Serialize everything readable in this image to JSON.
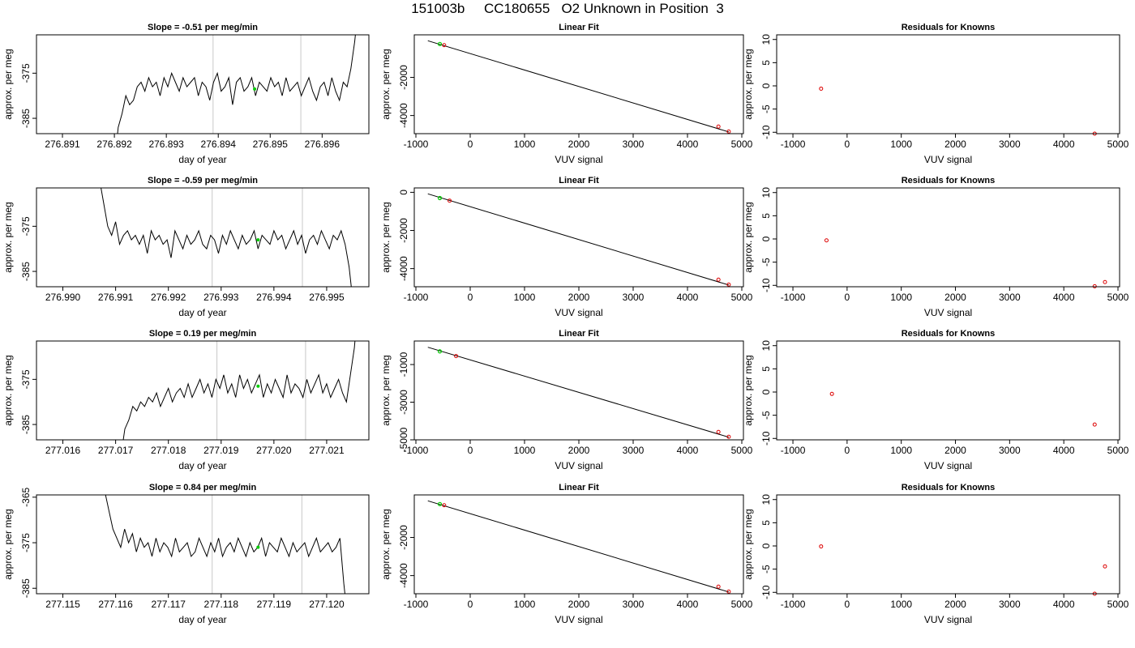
{
  "main_title": "151003b     CC180655   O2 Unknown in Position  3",
  "chart_data": [
    {
      "row": 1,
      "panel": "timeseries",
      "type": "line",
      "title": "Slope =  -0.51  per meg/min",
      "xlabel": "day of year",
      "ylabel": "approx. per meg",
      "xticks": [
        "276.891",
        "276.892",
        "276.893",
        "276.894",
        "276.895",
        "276.896"
      ],
      "yticks": [
        "-375",
        "-385"
      ],
      "xlim": [
        276.8905,
        276.8969
      ],
      "ylim": [
        -388.4,
        -366.5
      ],
      "vlines": [
        276.8939,
        276.89559
      ],
      "series": [
        {
          "values_x0": 276.892,
          "values_x1": 276.8967,
          "values": [
            -395,
            -387,
            -384,
            -380,
            -382,
            -381,
            -378,
            -377,
            -379,
            -376,
            -378,
            -377,
            -380,
            -376,
            -378,
            -375,
            -377,
            -379,
            -376,
            -378,
            -377,
            -376,
            -380,
            -377,
            -378,
            -381,
            -377,
            -375,
            -379,
            -378,
            -376,
            -382,
            -377,
            -376,
            -379,
            -378,
            -376,
            -380,
            -377,
            -378,
            -379,
            -376,
            -378,
            -377,
            -380,
            -376,
            -379,
            -378,
            -377,
            -380,
            -378,
            -376,
            -379,
            -381,
            -378,
            -377,
            -380,
            -376,
            -379,
            -381,
            -377,
            -378,
            -374,
            -368,
            -360
          ]
        }
      ],
      "green_point": [
        276.8947,
        -378.5
      ]
    },
    {
      "row": 1,
      "panel": "fit",
      "type": "scatter",
      "title": "Linear Fit",
      "xlabel": "VUV signal",
      "ylabel": "approx. per meg",
      "xticks": [
        "-1000",
        "0",
        "1000",
        "2000",
        "3000",
        "4000",
        "5000"
      ],
      "yticks": [
        "-2000",
        "-4000"
      ],
      "xlim": [
        -1030,
        5030
      ],
      "ylim": [
        -4950,
        230
      ],
      "line": [
        [
          -780,
          -80
        ],
        [
          4760,
          -4860
        ]
      ],
      "points_red": [
        [
          -480,
          -310
        ],
        [
          4570,
          -4580
        ],
        [
          4760,
          -4840
        ]
      ],
      "points_green": [
        [
          -560,
          -250
        ]
      ]
    },
    {
      "row": 1,
      "panel": "residuals",
      "type": "scatter",
      "title": "Residuals for Knowns",
      "xlabel": "VUV signal",
      "ylabel": "approx. per meg",
      "xticks": [
        "-1000",
        "0",
        "1000",
        "2000",
        "3000",
        "4000",
        "5000"
      ],
      "yticks": [
        "10",
        "5",
        "0",
        "-5",
        "-10"
      ],
      "xlim": [
        -1300,
        5030
      ],
      "ylim": [
        -10.3,
        11.0
      ],
      "points_red": [
        [
          -480,
          -0.6
        ],
        [
          4570,
          -10.3
        ]
      ]
    },
    {
      "row": 2,
      "panel": "timeseries",
      "type": "line",
      "title": "Slope =  -0.59  per meg/min",
      "xlabel": "day of year",
      "ylabel": "approx. per meg",
      "xticks": [
        "276.990",
        "276.991",
        "276.992",
        "276.993",
        "276.994",
        "276.995"
      ],
      "yticks": [
        "-375",
        "-385"
      ],
      "xlim": [
        276.9895,
        276.9958
      ],
      "ylim": [
        -388.4,
        -366.5
      ],
      "vlines": [
        276.99283,
        276.99454
      ],
      "series": [
        {
          "values_x0": 276.9907,
          "values_x1": 276.9955,
          "values": [
            -365,
            -370,
            -375,
            -377,
            -374,
            -379,
            -377,
            -376,
            -378,
            -377,
            -379,
            -377,
            -381,
            -376,
            -378,
            -377,
            -379,
            -378,
            -382,
            -376,
            -378,
            -380,
            -377,
            -379,
            -378,
            -376,
            -379,
            -380,
            -377,
            -378,
            -381,
            -377,
            -379,
            -376,
            -378,
            -380,
            -377,
            -379,
            -378,
            -376,
            -380,
            -377,
            -378,
            -379,
            -376,
            -378,
            -377,
            -380,
            -378,
            -376,
            -379,
            -377,
            -381,
            -378,
            -377,
            -379,
            -376,
            -378,
            -380,
            -377,
            -378,
            -376,
            -379,
            -384,
            -392
          ]
        }
      ],
      "green_point": [
        276.9937,
        -378.0
      ]
    },
    {
      "row": 2,
      "panel": "fit",
      "type": "scatter",
      "title": "Linear Fit",
      "xlabel": "VUV signal",
      "ylabel": "approx. per meg",
      "xticks": [
        "-1000",
        "0",
        "1000",
        "2000",
        "3000",
        "4000",
        "5000"
      ],
      "yticks": [
        "0",
        "-2000",
        "-4000"
      ],
      "xlim": [
        -1030,
        5030
      ],
      "ylim": [
        -4950,
        230
      ],
      "line": [
        [
          -780,
          -80
        ],
        [
          4760,
          -4860
        ]
      ],
      "points_red": [
        [
          -380,
          -440
        ],
        [
          4570,
          -4580
        ],
        [
          4760,
          -4840
        ]
      ],
      "points_green": [
        [
          -560,
          -300
        ]
      ]
    },
    {
      "row": 2,
      "panel": "residuals",
      "type": "scatter",
      "title": "Residuals for Knowns",
      "xlabel": "VUV signal",
      "ylabel": "approx. per meg",
      "xticks": [
        "-1000",
        "0",
        "1000",
        "2000",
        "3000",
        "4000",
        "5000"
      ],
      "yticks": [
        "10",
        "5",
        "0",
        "-5",
        "-10"
      ],
      "xlim": [
        -1300,
        5030
      ],
      "ylim": [
        -10.3,
        11.0
      ],
      "points_red": [
        [
          -380,
          -0.3
        ],
        [
          4570,
          -10.2
        ],
        [
          4760,
          -9.3
        ]
      ]
    },
    {
      "row": 3,
      "panel": "timeseries",
      "type": "line",
      "title": "Slope =  0.19  per meg/min",
      "xlabel": "day of year",
      "ylabel": "approx. per meg",
      "xticks": [
        "277.016",
        "277.017",
        "277.018",
        "277.019",
        "277.020",
        "277.021"
      ],
      "yticks": [
        "-375",
        "-385"
      ],
      "xlim": [
        277.0155,
        277.0218
      ],
      "ylim": [
        -388.4,
        -366.5
      ],
      "vlines": [
        277.01892,
        277.0206
      ],
      "series": [
        {
          "values_x0": 277.0171,
          "values_x1": 277.0216,
          "values": [
            -392,
            -386,
            -384,
            -381,
            -382,
            -380,
            -381,
            -379,
            -380,
            -378,
            -381,
            -379,
            -377,
            -380,
            -378,
            -377,
            -379,
            -376,
            -379,
            -377,
            -375,
            -378,
            -376,
            -379,
            -375,
            -377,
            -374,
            -378,
            -376,
            -379,
            -374,
            -377,
            -375,
            -378,
            -376,
            -374,
            -379,
            -376,
            -378,
            -375,
            -377,
            -379,
            -374,
            -378,
            -376,
            -377,
            -379,
            -375,
            -378,
            -376,
            -374,
            -378,
            -376,
            -379,
            -377,
            -375,
            -378,
            -380,
            -374,
            -368,
            -358
          ]
        }
      ],
      "green_point": [
        277.0197,
        -376.5
      ]
    },
    {
      "row": 3,
      "panel": "fit",
      "type": "scatter",
      "title": "Linear Fit",
      "xlabel": "VUV signal",
      "ylabel": "approx. per meg",
      "xticks": [
        "-1000",
        "0",
        "1000",
        "2000",
        "3000",
        "4000",
        "5000"
      ],
      "yticks": [
        "-1000",
        "-3000",
        "-5000"
      ],
      "xlim": [
        -1030,
        5030
      ],
      "ylim": [
        -5000,
        250
      ],
      "line": [
        [
          -780,
          -80
        ],
        [
          4760,
          -4860
        ]
      ],
      "points_red": [
        [
          -260,
          -550
        ],
        [
          4570,
          -4580
        ],
        [
          4760,
          -4840
        ]
      ],
      "points_green": [
        [
          -560,
          -300
        ]
      ]
    },
    {
      "row": 3,
      "panel": "residuals",
      "type": "scatter",
      "title": "Residuals for Knowns",
      "xlabel": "VUV signal",
      "ylabel": "approx. per meg",
      "xticks": [
        "-1000",
        "0",
        "1000",
        "2000",
        "3000",
        "4000",
        "5000"
      ],
      "yticks": [
        "10",
        "5",
        "0",
        "-5",
        "-10"
      ],
      "xlim": [
        -1300,
        5030
      ],
      "ylim": [
        -10.3,
        11.0
      ],
      "points_red": [
        [
          -280,
          -0.4
        ],
        [
          4570,
          -7.0
        ]
      ]
    },
    {
      "row": 4,
      "panel": "timeseries",
      "type": "line",
      "title": "Slope =  0.84  per meg/min",
      "xlabel": "day of year",
      "ylabel": "approx. per meg",
      "xticks": [
        "277.115",
        "277.116",
        "277.117",
        "277.118",
        "277.119",
        "277.120"
      ],
      "yticks": [
        "-365",
        "-375",
        "-385"
      ],
      "xlim": [
        277.1145,
        277.1208
      ],
      "ylim": [
        -386.2,
        -364.5
      ],
      "vlines": [
        277.11783,
        277.11953
      ],
      "series": [
        {
          "values_x0": 277.1158,
          "values_x1": 277.1204,
          "values": [
            -364,
            -368,
            -372,
            -374,
            -376,
            -372,
            -375,
            -373,
            -377,
            -374,
            -376,
            -375,
            -378,
            -374,
            -377,
            -375,
            -376,
            -378,
            -374,
            -377,
            -376,
            -375,
            -378,
            -377,
            -374,
            -376,
            -378,
            -375,
            -377,
            -374,
            -378,
            -376,
            -375,
            -377,
            -374,
            -376,
            -378,
            -375,
            -377,
            -376,
            -374,
            -378,
            -375,
            -376,
            -377,
            -374,
            -376,
            -378,
            -375,
            -377,
            -376,
            -375,
            -378,
            -376,
            -374,
            -377,
            -376,
            -375,
            -377,
            -376,
            -374,
            -384,
            -392
          ]
        }
      ],
      "green_point": [
        277.1187,
        -376.0
      ]
    },
    {
      "row": 4,
      "panel": "fit",
      "type": "scatter",
      "title": "Linear Fit",
      "xlabel": "VUV signal",
      "ylabel": "approx. per meg",
      "xticks": [
        "-1000",
        "0",
        "1000",
        "2000",
        "3000",
        "4000",
        "5000"
      ],
      "yticks": [
        "-2000",
        "-4000"
      ],
      "xlim": [
        -1030,
        5030
      ],
      "ylim": [
        -4950,
        230
      ],
      "line": [
        [
          -780,
          -80
        ],
        [
          4760,
          -4860
        ]
      ],
      "points_red": [
        [
          -480,
          -310
        ],
        [
          4570,
          -4580
        ],
        [
          4760,
          -4840
        ]
      ],
      "points_green": [
        [
          -560,
          -250
        ]
      ]
    },
    {
      "row": 4,
      "panel": "residuals",
      "type": "scatter",
      "title": "Residuals for Knowns",
      "xlabel": "VUV signal",
      "ylabel": "approx. per meg",
      "xticks": [
        "-1000",
        "0",
        "1000",
        "2000",
        "3000",
        "4000",
        "5000"
      ],
      "yticks": [
        "10",
        "5",
        "0",
        "-5",
        "-10"
      ],
      "xlim": [
        -1300,
        5030
      ],
      "ylim": [
        -10.3,
        11.0
      ],
      "points_red": [
        [
          -480,
          -0.1
        ],
        [
          4570,
          -10.3
        ],
        [
          4760,
          -4.4
        ]
      ]
    }
  ]
}
